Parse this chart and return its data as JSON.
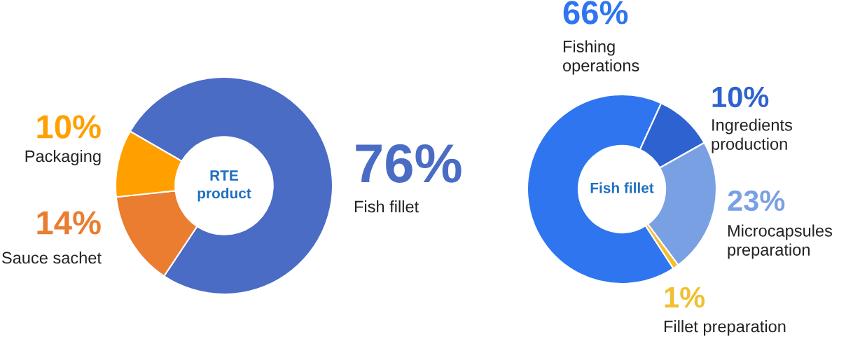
{
  "chart_data": [
    {
      "type": "donut",
      "title": "RTE product",
      "categories": [
        "Fish fillet",
        "Sauce sachet",
        "Packaging"
      ],
      "values": [
        76,
        14,
        10
      ],
      "colors": [
        "#4a6cc4",
        "#ea7d30",
        "#ffa000"
      ],
      "value_labels": [
        "76%",
        "14%",
        "10%"
      ],
      "legend": false
    },
    {
      "type": "donut",
      "title": "Fish fillet",
      "categories": [
        "Fishing operations",
        "Ingredients production",
        "Microcapsules preparation",
        "Fillet preparation"
      ],
      "values": [
        66,
        10,
        23,
        1
      ],
      "colors": [
        "#2f75f0",
        "#2d62d0",
        "#7aa0e4",
        "#f0c030"
      ],
      "value_labels": [
        "66%",
        "10%",
        "23%",
        "1%"
      ],
      "legend": false
    }
  ]
}
